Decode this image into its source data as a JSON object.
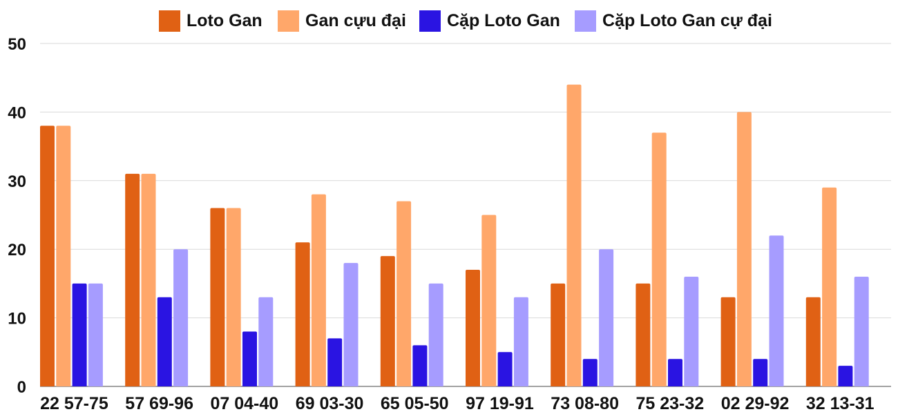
{
  "chart_data": {
    "type": "bar",
    "title": "",
    "xlabel": "",
    "ylabel": "",
    "ylim": [
      0,
      50
    ],
    "yticks": [
      0,
      10,
      20,
      30,
      40,
      50
    ],
    "grid": true,
    "legend_position": "top-center",
    "categories": [
      "22 57-75",
      "57 69-96",
      "07 04-40",
      "69 03-30",
      "65 05-50",
      "97 19-91",
      "73 08-80",
      "75 23-32",
      "02 29-92",
      "32 13-31"
    ],
    "series": [
      {
        "name": "Loto Gan",
        "color": "#e06114",
        "values": [
          38,
          31,
          26,
          21,
          19,
          17,
          15,
          15,
          13,
          13
        ]
      },
      {
        "name": "Gan cựu đại",
        "color": "#ffa76a",
        "values": [
          38,
          31,
          26,
          28,
          27,
          25,
          44,
          37,
          40,
          29
        ]
      },
      {
        "name": "Cặp Loto Gan",
        "color": "#2a14e2",
        "values": [
          15,
          13,
          8,
          7,
          6,
          5,
          4,
          4,
          4,
          3
        ]
      },
      {
        "name": "Cặp Loto Gan cự đại",
        "color": "#a69cff",
        "values": [
          15,
          20,
          13,
          18,
          15,
          13,
          20,
          16,
          22,
          16
        ]
      }
    ]
  }
}
